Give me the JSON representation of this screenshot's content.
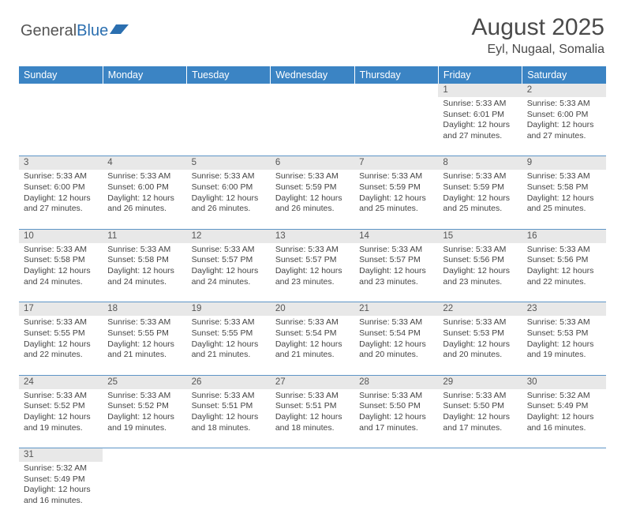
{
  "logo": {
    "general": "General",
    "blue": "Blue"
  },
  "title": "August 2025",
  "location": "Eyl, Nugaal, Somalia",
  "colors": {
    "header_bg": "#3b84c4",
    "daynum_bg": "#e8e8e8",
    "row_divider": "#5d95c6",
    "text": "#444444",
    "title_text": "#4a4a4a"
  },
  "weekdays": [
    "Sunday",
    "Monday",
    "Tuesday",
    "Wednesday",
    "Thursday",
    "Friday",
    "Saturday"
  ],
  "weeks": [
    {
      "nums": [
        "",
        "",
        "",
        "",
        "",
        "1",
        "2"
      ],
      "cells": [
        null,
        null,
        null,
        null,
        null,
        {
          "sunrise": "Sunrise: 5:33 AM",
          "sunset": "Sunset: 6:01 PM",
          "day1": "Daylight: 12 hours",
          "day2": "and 27 minutes."
        },
        {
          "sunrise": "Sunrise: 5:33 AM",
          "sunset": "Sunset: 6:00 PM",
          "day1": "Daylight: 12 hours",
          "day2": "and 27 minutes."
        }
      ]
    },
    {
      "nums": [
        "3",
        "4",
        "5",
        "6",
        "7",
        "8",
        "9"
      ],
      "cells": [
        {
          "sunrise": "Sunrise: 5:33 AM",
          "sunset": "Sunset: 6:00 PM",
          "day1": "Daylight: 12 hours",
          "day2": "and 27 minutes."
        },
        {
          "sunrise": "Sunrise: 5:33 AM",
          "sunset": "Sunset: 6:00 PM",
          "day1": "Daylight: 12 hours",
          "day2": "and 26 minutes."
        },
        {
          "sunrise": "Sunrise: 5:33 AM",
          "sunset": "Sunset: 6:00 PM",
          "day1": "Daylight: 12 hours",
          "day2": "and 26 minutes."
        },
        {
          "sunrise": "Sunrise: 5:33 AM",
          "sunset": "Sunset: 5:59 PM",
          "day1": "Daylight: 12 hours",
          "day2": "and 26 minutes."
        },
        {
          "sunrise": "Sunrise: 5:33 AM",
          "sunset": "Sunset: 5:59 PM",
          "day1": "Daylight: 12 hours",
          "day2": "and 25 minutes."
        },
        {
          "sunrise": "Sunrise: 5:33 AM",
          "sunset": "Sunset: 5:59 PM",
          "day1": "Daylight: 12 hours",
          "day2": "and 25 minutes."
        },
        {
          "sunrise": "Sunrise: 5:33 AM",
          "sunset": "Sunset: 5:58 PM",
          "day1": "Daylight: 12 hours",
          "day2": "and 25 minutes."
        }
      ]
    },
    {
      "nums": [
        "10",
        "11",
        "12",
        "13",
        "14",
        "15",
        "16"
      ],
      "cells": [
        {
          "sunrise": "Sunrise: 5:33 AM",
          "sunset": "Sunset: 5:58 PM",
          "day1": "Daylight: 12 hours",
          "day2": "and 24 minutes."
        },
        {
          "sunrise": "Sunrise: 5:33 AM",
          "sunset": "Sunset: 5:58 PM",
          "day1": "Daylight: 12 hours",
          "day2": "and 24 minutes."
        },
        {
          "sunrise": "Sunrise: 5:33 AM",
          "sunset": "Sunset: 5:57 PM",
          "day1": "Daylight: 12 hours",
          "day2": "and 24 minutes."
        },
        {
          "sunrise": "Sunrise: 5:33 AM",
          "sunset": "Sunset: 5:57 PM",
          "day1": "Daylight: 12 hours",
          "day2": "and 23 minutes."
        },
        {
          "sunrise": "Sunrise: 5:33 AM",
          "sunset": "Sunset: 5:57 PM",
          "day1": "Daylight: 12 hours",
          "day2": "and 23 minutes."
        },
        {
          "sunrise": "Sunrise: 5:33 AM",
          "sunset": "Sunset: 5:56 PM",
          "day1": "Daylight: 12 hours",
          "day2": "and 23 minutes."
        },
        {
          "sunrise": "Sunrise: 5:33 AM",
          "sunset": "Sunset: 5:56 PM",
          "day1": "Daylight: 12 hours",
          "day2": "and 22 minutes."
        }
      ]
    },
    {
      "nums": [
        "17",
        "18",
        "19",
        "20",
        "21",
        "22",
        "23"
      ],
      "cells": [
        {
          "sunrise": "Sunrise: 5:33 AM",
          "sunset": "Sunset: 5:55 PM",
          "day1": "Daylight: 12 hours",
          "day2": "and 22 minutes."
        },
        {
          "sunrise": "Sunrise: 5:33 AM",
          "sunset": "Sunset: 5:55 PM",
          "day1": "Daylight: 12 hours",
          "day2": "and 21 minutes."
        },
        {
          "sunrise": "Sunrise: 5:33 AM",
          "sunset": "Sunset: 5:55 PM",
          "day1": "Daylight: 12 hours",
          "day2": "and 21 minutes."
        },
        {
          "sunrise": "Sunrise: 5:33 AM",
          "sunset": "Sunset: 5:54 PM",
          "day1": "Daylight: 12 hours",
          "day2": "and 21 minutes."
        },
        {
          "sunrise": "Sunrise: 5:33 AM",
          "sunset": "Sunset: 5:54 PM",
          "day1": "Daylight: 12 hours",
          "day2": "and 20 minutes."
        },
        {
          "sunrise": "Sunrise: 5:33 AM",
          "sunset": "Sunset: 5:53 PM",
          "day1": "Daylight: 12 hours",
          "day2": "and 20 minutes."
        },
        {
          "sunrise": "Sunrise: 5:33 AM",
          "sunset": "Sunset: 5:53 PM",
          "day1": "Daylight: 12 hours",
          "day2": "and 19 minutes."
        }
      ]
    },
    {
      "nums": [
        "24",
        "25",
        "26",
        "27",
        "28",
        "29",
        "30"
      ],
      "cells": [
        {
          "sunrise": "Sunrise: 5:33 AM",
          "sunset": "Sunset: 5:52 PM",
          "day1": "Daylight: 12 hours",
          "day2": "and 19 minutes."
        },
        {
          "sunrise": "Sunrise: 5:33 AM",
          "sunset": "Sunset: 5:52 PM",
          "day1": "Daylight: 12 hours",
          "day2": "and 19 minutes."
        },
        {
          "sunrise": "Sunrise: 5:33 AM",
          "sunset": "Sunset: 5:51 PM",
          "day1": "Daylight: 12 hours",
          "day2": "and 18 minutes."
        },
        {
          "sunrise": "Sunrise: 5:33 AM",
          "sunset": "Sunset: 5:51 PM",
          "day1": "Daylight: 12 hours",
          "day2": "and 18 minutes."
        },
        {
          "sunrise": "Sunrise: 5:33 AM",
          "sunset": "Sunset: 5:50 PM",
          "day1": "Daylight: 12 hours",
          "day2": "and 17 minutes."
        },
        {
          "sunrise": "Sunrise: 5:33 AM",
          "sunset": "Sunset: 5:50 PM",
          "day1": "Daylight: 12 hours",
          "day2": "and 17 minutes."
        },
        {
          "sunrise": "Sunrise: 5:32 AM",
          "sunset": "Sunset: 5:49 PM",
          "day1": "Daylight: 12 hours",
          "day2": "and 16 minutes."
        }
      ]
    },
    {
      "nums": [
        "31",
        "",
        "",
        "",
        "",
        "",
        ""
      ],
      "cells": [
        {
          "sunrise": "Sunrise: 5:32 AM",
          "sunset": "Sunset: 5:49 PM",
          "day1": "Daylight: 12 hours",
          "day2": "and 16 minutes."
        },
        null,
        null,
        null,
        null,
        null,
        null
      ]
    }
  ]
}
